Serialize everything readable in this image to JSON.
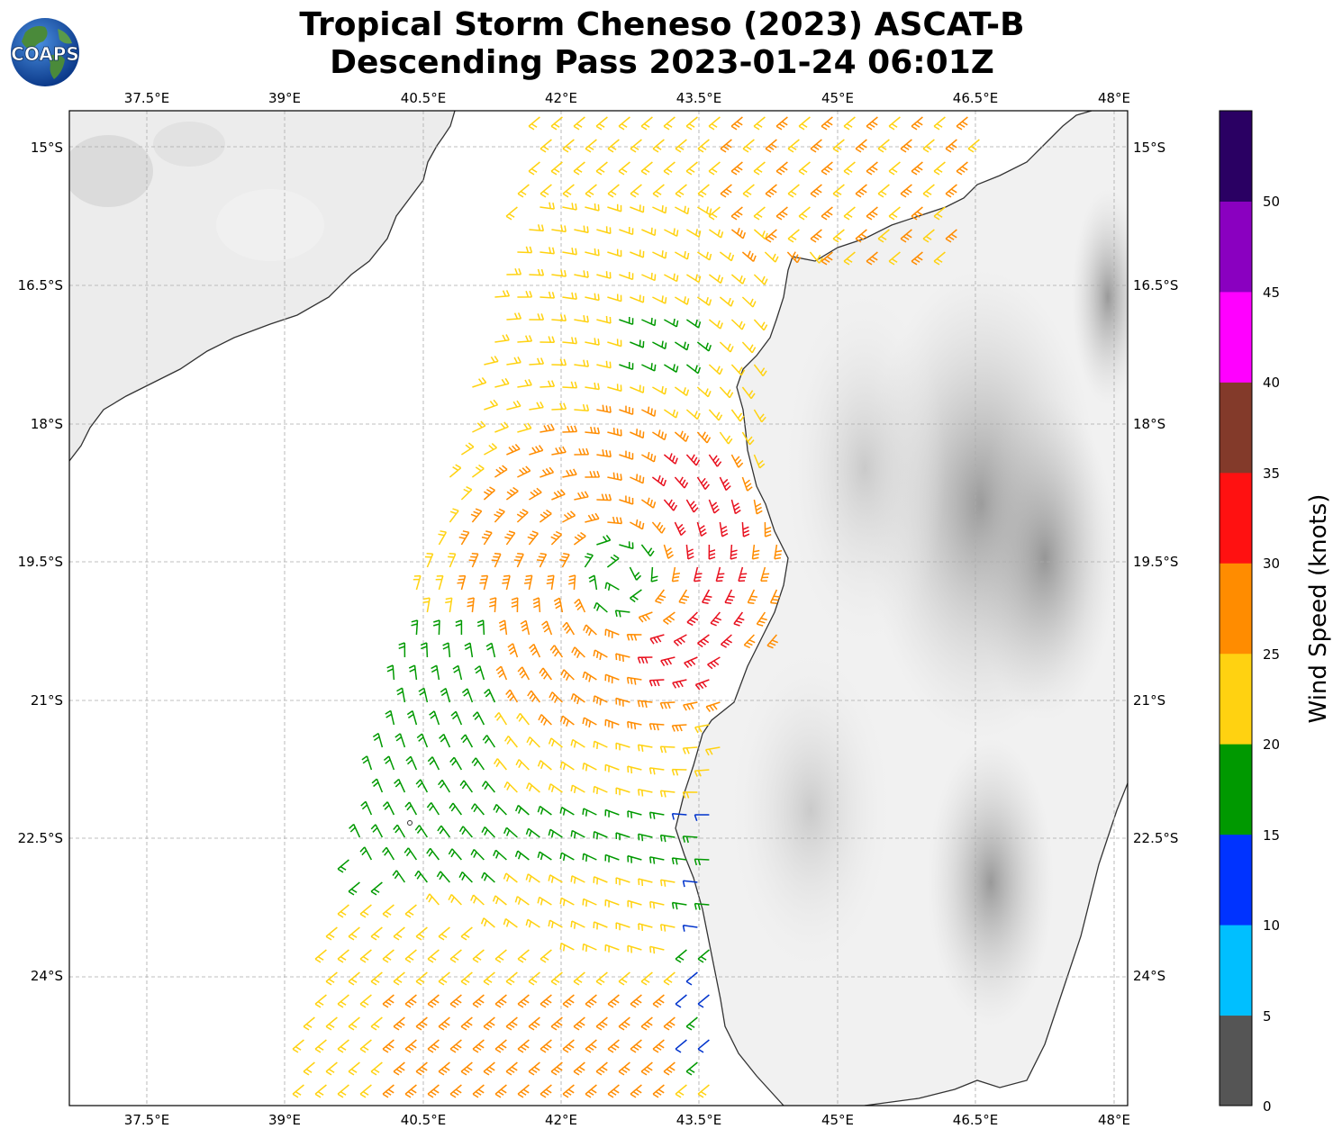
{
  "title_line1": "Tropical Storm Cheneso (2023) ASCAT-B",
  "title_line2": "Descending Pass 2023-01-24 06:01Z",
  "logo_text": "COAPS",
  "lon_ticks": [
    "37.5°E",
    "39°E",
    "40.5°E",
    "42°E",
    "43.5°E",
    "45°E",
    "46.5°E",
    "48°E"
  ],
  "lat_ticks": [
    "15°S",
    "16.5°S",
    "18°S",
    "19.5°S",
    "21°S",
    "22.5°S",
    "24°S"
  ],
  "colorbar": {
    "label": "Wind Speed (knots)",
    "ticks": [
      "0",
      "5",
      "10",
      "15",
      "20",
      "25",
      "30",
      "35",
      "40",
      "45",
      "50"
    ],
    "colors": [
      "#555555",
      "#00bfff",
      "#0033ff",
      "#009900",
      "#ffd211",
      "#ff8c00",
      "#ff1111",
      "#833a2a",
      "#ff00ff",
      "#8a00c0",
      "#2a0063"
    ]
  },
  "map": {
    "lon_range": [
      36.65,
      48.15
    ],
    "lat_range": [
      -25.55,
      -14.75
    ],
    "storm_center": {
      "lon": 42.85,
      "lat": -19.55
    }
  }
}
